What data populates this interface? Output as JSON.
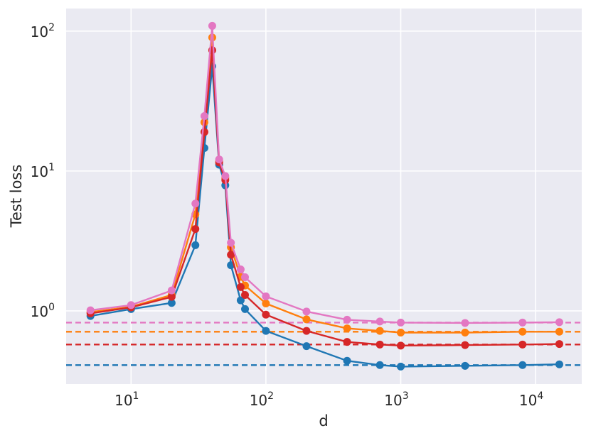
{
  "chart_data": {
    "type": "line",
    "xlabel": "d",
    "ylabel": "Test loss",
    "xscale": "log",
    "yscale": "log",
    "xlim": [
      3.3,
      22000
    ],
    "ylim": [
      0.3,
      145
    ],
    "grid": true,
    "background": "#EAEAF2",
    "x_tick_labels": [
      {
        "base": "10",
        "exp": "1",
        "value": 10
      },
      {
        "base": "10",
        "exp": "2",
        "value": 100
      },
      {
        "base": "10",
        "exp": "3",
        "value": 1000
      },
      {
        "base": "10",
        "exp": "4",
        "value": 10000
      }
    ],
    "y_tick_labels": [
      {
        "base": "10",
        "exp": "0",
        "value": 1
      },
      {
        "base": "10",
        "exp": "1",
        "value": 10
      },
      {
        "base": "10",
        "exp": "2",
        "value": 100
      }
    ],
    "x": [
      5,
      10,
      20,
      30,
      35,
      40,
      45,
      50,
      55,
      65,
      70,
      100,
      200,
      400,
      700,
      1000,
      3000,
      8000,
      15000
    ],
    "series": [
      {
        "color": "#1f77b4",
        "values": [
          0.92,
          1.03,
          1.14,
          2.95,
          14.6,
          56,
          11.1,
          7.9,
          2.12,
          1.19,
          1.03,
          0.72,
          0.56,
          0.44,
          0.41,
          0.4,
          0.405,
          0.41,
          0.415
        ],
        "baseline": 0.41
      },
      {
        "color": "#ff7f0e",
        "values": [
          0.98,
          1.07,
          1.3,
          4.9,
          22.3,
          90,
          11.8,
          8.9,
          2.85,
          1.75,
          1.52,
          1.13,
          0.87,
          0.75,
          0.72,
          0.7,
          0.7,
          0.71,
          0.71
        ],
        "baseline": 0.71
      },
      {
        "color": "#d62728",
        "values": [
          0.96,
          1.06,
          1.26,
          3.85,
          19,
          73,
          11.5,
          8.6,
          2.52,
          1.48,
          1.3,
          0.94,
          0.72,
          0.6,
          0.575,
          0.565,
          0.57,
          0.575,
          0.58
        ],
        "baseline": 0.575
      },
      {
        "color": "#e377c2",
        "values": [
          1.01,
          1.1,
          1.4,
          5.85,
          24.7,
          109,
          12.1,
          9.2,
          3.07,
          1.98,
          1.74,
          1.27,
          0.99,
          0.865,
          0.84,
          0.825,
          0.82,
          0.825,
          0.83
        ],
        "baseline": 0.825
      }
    ]
  }
}
